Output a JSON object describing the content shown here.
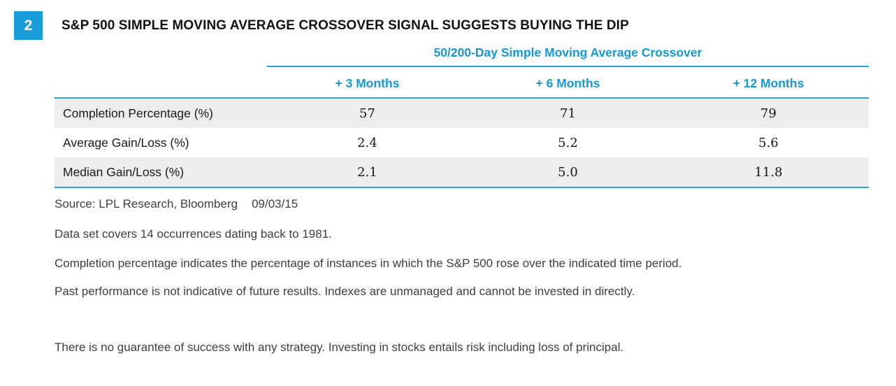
{
  "figure": {
    "number": "2",
    "title": "S&P 500 SIMPLE MOVING AVERAGE CROSSOVER SIGNAL SUGGESTS BUYING THE DIP"
  },
  "table": {
    "group_header": "50/200-Day Simple Moving Average Crossover",
    "columns": [
      "+ 3 Months",
      "+ 6 Months",
      "+ 12 Months"
    ],
    "rows": [
      {
        "label": "Completion Percentage (%)",
        "values": [
          "57",
          "71",
          "79"
        ]
      },
      {
        "label": "Average Gain/Loss (%)",
        "values": [
          "2.4",
          "5.2",
          "5.6"
        ]
      },
      {
        "label": "Median Gain/Loss (%)",
        "values": [
          "2.1",
          "5.0",
          "11.8"
        ]
      }
    ]
  },
  "source": {
    "label": "Source: LPL Research, Bloomberg",
    "date": "09/03/15"
  },
  "notes": [
    "Data set covers 14 occurrences dating back to 1981.",
    "Completion percentage indicates the percentage of instances in which the S&P 500 rose over the indicated time period.",
    "Past performance is not indicative of future results. Indexes are unmanaged and cannot be invested in directly."
  ],
  "disclaimer": "There is no guarantee of success with any strategy. Investing in stocks entails risk including loss of principal.",
  "colors": {
    "accent_blue": "#1b9dd9",
    "rule_blue": "#2aa3dc",
    "header_text_blue": "#1598d6",
    "row_stripe_gray": "#ededed"
  },
  "chart_data": {
    "type": "table",
    "title": "S&P 500 SIMPLE MOVING AVERAGE CROSSOVER SIGNAL SUGGESTS BUYING THE DIP",
    "group_header": "50/200-Day Simple Moving Average Crossover",
    "columns": [
      "",
      "+ 3 Months",
      "+ 6 Months",
      "+ 12 Months"
    ],
    "rows": [
      [
        "Completion Percentage (%)",
        57,
        71,
        79
      ],
      [
        "Average Gain/Loss (%)",
        2.4,
        5.2,
        5.6
      ],
      [
        "Median Gain/Loss (%)",
        2.1,
        5.0,
        11.8
      ]
    ]
  }
}
